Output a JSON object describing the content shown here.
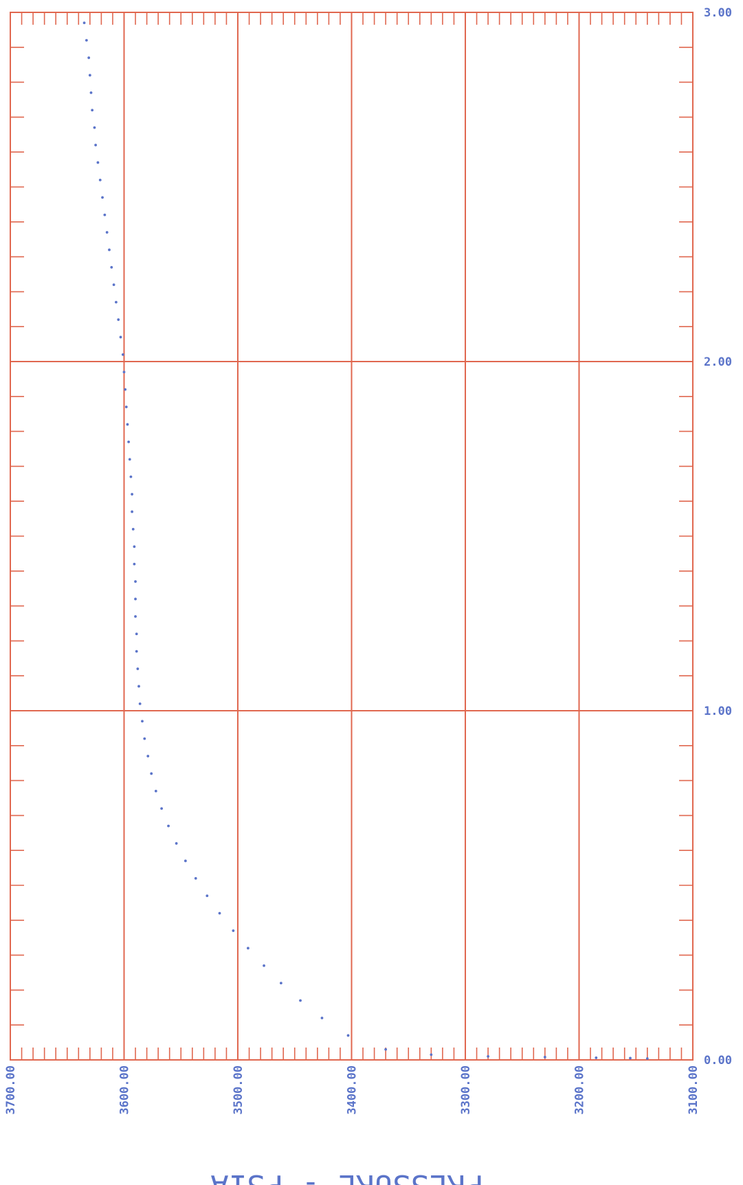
{
  "chart_data": {
    "type": "scatter",
    "xlabel": "PRESSURE - PSIA",
    "xlim": [
      3700,
      3100
    ],
    "ylim": [
      0,
      3
    ],
    "x_ticks": [
      "3700.00",
      "3600.00",
      "3500.00",
      "3400.00",
      "3300.00",
      "3200.00",
      "3100.00"
    ],
    "y_ticks": [
      "0.00",
      "1.00",
      "2.00",
      "3.00"
    ],
    "grid": true,
    "colors": {
      "grid": "#e0674f",
      "data": "#5b74c9",
      "text": "#5b74c9"
    },
    "series": [
      {
        "points": [
          [
            3635,
            2.97
          ],
          [
            3633,
            2.92
          ],
          [
            3631,
            2.87
          ],
          [
            3630,
            2.82
          ],
          [
            3629,
            2.77
          ],
          [
            3628,
            2.72
          ],
          [
            3626,
            2.67
          ],
          [
            3625,
            2.62
          ],
          [
            3623,
            2.57
          ],
          [
            3621,
            2.52
          ],
          [
            3619,
            2.47
          ],
          [
            3617,
            2.42
          ],
          [
            3615,
            2.37
          ],
          [
            3613,
            2.32
          ],
          [
            3611,
            2.27
          ],
          [
            3609,
            2.22
          ],
          [
            3607,
            2.17
          ],
          [
            3605,
            2.12
          ],
          [
            3603,
            2.07
          ],
          [
            3601,
            2.02
          ],
          [
            3600,
            1.97
          ],
          [
            3599,
            1.92
          ],
          [
            3598,
            1.87
          ],
          [
            3597,
            1.82
          ],
          [
            3596,
            1.77
          ],
          [
            3595,
            1.72
          ],
          [
            3594,
            1.67
          ],
          [
            3593,
            1.62
          ],
          [
            3593,
            1.57
          ],
          [
            3592,
            1.52
          ],
          [
            3591,
            1.47
          ],
          [
            3591,
            1.42
          ],
          [
            3590,
            1.37
          ],
          [
            3590,
            1.32
          ],
          [
            3590,
            1.27
          ],
          [
            3589,
            1.22
          ],
          [
            3589,
            1.17
          ],
          [
            3588,
            1.12
          ],
          [
            3587,
            1.07
          ],
          [
            3586,
            1.02
          ],
          [
            3584,
            0.97
          ],
          [
            3582,
            0.92
          ],
          [
            3579,
            0.87
          ],
          [
            3576,
            0.82
          ],
          [
            3572,
            0.77
          ],
          [
            3567,
            0.72
          ],
          [
            3561,
            0.67
          ],
          [
            3554,
            0.62
          ],
          [
            3546,
            0.57
          ],
          [
            3537,
            0.52
          ],
          [
            3527,
            0.47
          ],
          [
            3516,
            0.42
          ],
          [
            3504,
            0.37
          ],
          [
            3491,
            0.32
          ],
          [
            3477,
            0.27
          ],
          [
            3462,
            0.22
          ],
          [
            3445,
            0.17
          ],
          [
            3426,
            0.12
          ],
          [
            3403,
            0.07
          ],
          [
            3370,
            0.03
          ],
          [
            3330,
            0.015
          ],
          [
            3280,
            0.01
          ],
          [
            3230,
            0.008
          ],
          [
            3185,
            0.006
          ],
          [
            3155,
            0.005
          ],
          [
            3140,
            0.004
          ]
        ]
      }
    ]
  }
}
